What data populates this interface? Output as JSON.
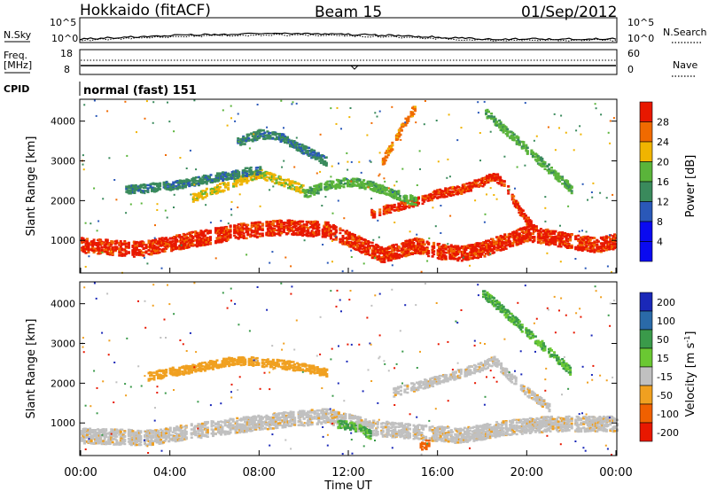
{
  "header": {
    "title": "Hokkaido (fitACF)",
    "beam": "Beam 15",
    "date": "01/Sep/2012"
  },
  "sky_panel": {
    "left_label": "N.Sky",
    "right_label": "N.Search",
    "left_ticks": [
      "10^5",
      "10^0"
    ],
    "right_ticks": [
      "10^5",
      "10^0"
    ],
    "scale": "log"
  },
  "freq_panel": {
    "left_label_1": "Freq.",
    "left_label_2": "[MHz]",
    "right_label": "Nave",
    "left_ticks": [
      "18",
      "8"
    ],
    "right_ticks": [
      "60",
      "0"
    ]
  },
  "cpid_panel": {
    "label": "CPID",
    "text": "normal (fast) 151"
  },
  "x_axis": {
    "label": "Time UT",
    "ticks": [
      "00:00",
      "04:00",
      "08:00",
      "12:00",
      "16:00",
      "20:00",
      "00:00"
    ]
  },
  "y_axis": {
    "label": "Slant Range [km]",
    "ticks": [
      "1000",
      "2000",
      "3000",
      "4000"
    ]
  },
  "power_colorbar": {
    "label": "Power [dB]",
    "ticks": [
      "4",
      "8",
      "12",
      "16",
      "20",
      "24",
      "28"
    ],
    "colors": [
      "#0a0af0",
      "#2a58b8",
      "#3a8a5c",
      "#5ab43a",
      "#f0b400",
      "#f06a00",
      "#e81800"
    ]
  },
  "velocity_colorbar": {
    "label": "Velocity [m s",
    "label_sup": "-1",
    "label_end": "]",
    "ticks": [
      "200",
      "100",
      "50",
      "15",
      "-15",
      "-50",
      "-100",
      "-200"
    ],
    "colors": [
      "#1a28b8",
      "#2a6aa8",
      "#3a9a4a",
      "#6ac832",
      "#c0c0c0",
      "#f0a020",
      "#f06000",
      "#e81800"
    ]
  },
  "chart_data": {
    "type": "heatmap",
    "x_range_hours_ut": [
      0,
      24
    ],
    "y_range_km": [
      180,
      4550
    ],
    "panels": [
      {
        "quantity": "Power",
        "unit": "dB",
        "colorbar_range": [
          0,
          32
        ],
        "features": [
          {
            "t": [
              0,
              2.5,
              5,
              7,
              9,
              11,
              12,
              13.5,
              15,
              16,
              17,
              18,
              19,
              20,
              21,
              22,
              23,
              24
            ],
            "range_km": [
              900,
              800,
              1050,
              1250,
              1350,
              1300,
              1050,
              650,
              900,
              750,
              700,
              800,
              1000,
              1200,
              1100,
              1000,
              900,
              1000
            ],
            "power_db": 28
          },
          {
            "t": [
              13,
              14,
              15,
              16,
              17,
              18,
              18.5,
              19,
              19.5,
              20,
              20.5
            ],
            "range_km": [
              1700,
              1850,
              2000,
              2200,
              2300,
              2500,
              2650,
              2400,
              1900,
              1500,
              1200
            ],
            "power_db": 26
          },
          {
            "t": [
              5,
              6,
              7,
              8,
              9,
              10
            ],
            "range_km": [
              2100,
              2300,
              2500,
              2700,
              2500,
              2300
            ],
            "power_db": 18
          },
          {
            "t": [
              10,
              11,
              12,
              13,
              14,
              15
            ],
            "range_km": [
              2200,
              2400,
              2500,
              2400,
              2200,
              2000
            ],
            "power_db": 14
          },
          {
            "t": [
              2,
              4,
              6,
              8
            ],
            "range_km": [
              2300,
              2400,
              2600,
              2800
            ],
            "power_db": 12
          },
          {
            "t": [
              7,
              8,
              9,
              10,
              11
            ],
            "range_km": [
              3500,
              3700,
              3600,
              3300,
              3000
            ],
            "power_db": 12
          },
          {
            "t": [
              13.5,
              14,
              14.5,
              15
            ],
            "range_km": [
              3000,
              3500,
              4000,
              4400
            ],
            "power_db": 22
          },
          {
            "t": [
              18,
              19,
              20,
              21,
              22
            ],
            "range_km": [
              4300,
              3800,
              3300,
              2800,
              2300
            ],
            "power_db": 16
          }
        ]
      },
      {
        "quantity": "Velocity",
        "unit": "m/s",
        "colorbar_range": [
          -250,
          250
        ],
        "features": [
          {
            "t": [
              0,
              3,
              6,
              9,
              11,
              13,
              15,
              17,
              19,
              21,
              24
            ],
            "range_km": [
              700,
              650,
              900,
              1100,
              1200,
              900,
              800,
              700,
              900,
              1000,
              1000
            ],
            "velocity_ms": 0
          },
          {
            "t": [
              14,
              16,
              18,
              18.5,
              19,
              20,
              21
            ],
            "range_km": [
              1800,
              2100,
              2450,
              2600,
              2300,
              1800,
              1400
            ],
            "velocity_ms": 0
          },
          {
            "t": [
              3,
              5,
              7,
              9,
              11
            ],
            "range_km": [
              2200,
              2400,
              2600,
              2500,
              2300
            ],
            "velocity_ms": -40
          },
          {
            "t": [
              18,
              19,
              20,
              21,
              22
            ],
            "range_km": [
              4300,
              3800,
              3300,
              2800,
              2300
            ],
            "velocity_ms": 40
          },
          {
            "t": [
              11.5,
              12.5,
              13
            ],
            "range_km": [
              1000,
              900,
              700
            ],
            "velocity_ms": 50
          },
          {
            "t": [
              15.2,
              15.6
            ],
            "range_km": [
              450,
              500
            ],
            "velocity_ms": -120
          }
        ]
      }
    ]
  }
}
